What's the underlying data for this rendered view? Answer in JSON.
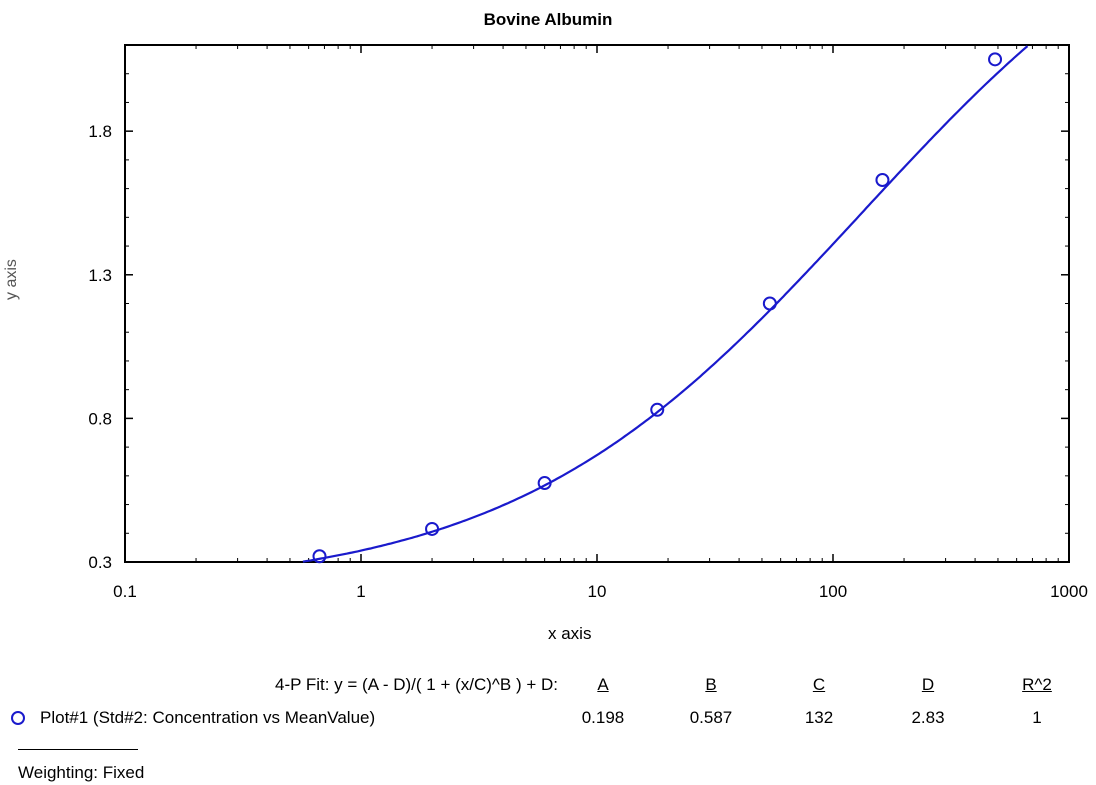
{
  "chart_data": {
    "type": "scatter",
    "title": "Bovine Albumin",
    "xlabel": "x axis",
    "ylabel": "y axis",
    "x_scale": "log",
    "xlim": [
      0.1,
      1000
    ],
    "ylim": [
      0.3,
      2.1
    ],
    "x_tick_labels": [
      "0.1",
      "1",
      "10",
      "100",
      "1000"
    ],
    "x_ticks": [
      0.1,
      1,
      10,
      100,
      1000
    ],
    "y_tick_labels": [
      "0.3",
      "0.8",
      "1.3",
      "1.8"
    ],
    "y_ticks": [
      0.3,
      0.8,
      1.3,
      1.8
    ],
    "grid": false,
    "series": [
      {
        "name": "Plot#1 (Std#2: Concentration vs MeanValue)",
        "color": "#1a1acc",
        "marker": "open-circle",
        "x": [
          0.667,
          2,
          6,
          18,
          54,
          162,
          486
        ],
        "y": [
          0.32,
          0.415,
          0.575,
          0.83,
          1.2,
          1.63,
          2.05
        ]
      }
    ],
    "fit": {
      "model": "4-P Fit",
      "equation": "4-P Fit: y = (A - D)/( 1 + (x/C)^B ) + D:",
      "params": {
        "A": 0.198,
        "B": 0.587,
        "C": 132,
        "D": 2.83
      },
      "color": "#1a1acc"
    }
  },
  "fit_table": {
    "headers": [
      "A",
      "B",
      "C",
      "D",
      "R^2"
    ],
    "values": [
      "0.198",
      "0.587",
      "132",
      "2.83",
      "1"
    ]
  },
  "legend": {
    "label": "Plot#1 (Std#2: Concentration vs MeanValue)",
    "weighting": "Weighting: Fixed"
  }
}
